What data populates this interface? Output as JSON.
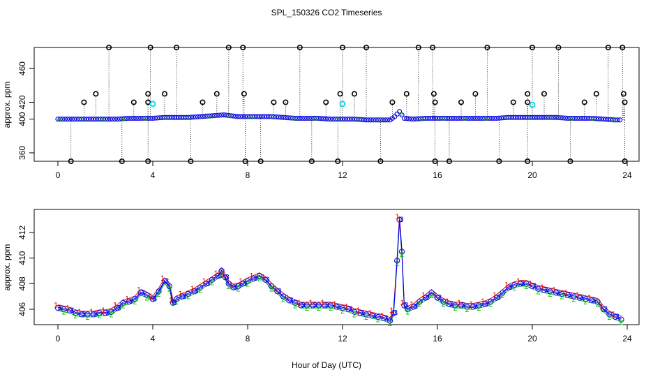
{
  "chart_data": [
    {
      "type": "scatter",
      "title": "SPL_150326  CO2 Timeseries",
      "ylabel": "approx. ppm",
      "xlim": [
        -1,
        24.5
      ],
      "ylim": [
        350,
        485
      ],
      "xticks": [
        0,
        4,
        8,
        12,
        16,
        20,
        24
      ],
      "yticks": [
        360,
        400,
        420,
        460
      ],
      "xtick_labels": [
        "0",
        "4",
        "8",
        "12",
        "16",
        "20",
        "24"
      ],
      "ytick_labels": [
        "360",
        "400",
        "420",
        "460"
      ],
      "baseline": {
        "hours": [
          0,
          0.5,
          1,
          1.5,
          2,
          2.5,
          3,
          3.5,
          4,
          4.5,
          5,
          5.5,
          6,
          6.5,
          7,
          7.3,
          7.6,
          8,
          8.5,
          9,
          9.5,
          10,
          10.5,
          11,
          11.5,
          12,
          12.5,
          13,
          13.5,
          14,
          14.2,
          14.4,
          14.6,
          15,
          15.5,
          16,
          16.5,
          17,
          17.5,
          18,
          18.5,
          19,
          19.5,
          20,
          20.5,
          21,
          21.5,
          22,
          22.5,
          23,
          23.5,
          23.8
        ],
        "values": [
          400,
          400,
          400,
          400,
          400,
          400,
          401,
          401,
          401,
          402,
          402,
          402,
          403,
          404,
          405,
          404,
          403,
          403,
          403,
          403,
          402,
          401,
          401,
          401,
          400,
          400,
          400,
          399,
          399,
          399,
          403,
          409,
          401,
          400,
          401,
          401,
          401,
          401,
          401,
          401,
          401,
          402,
          402,
          402,
          402,
          402,
          401,
          401,
          401,
          400,
          399,
          399
        ]
      },
      "spike_hours": [
        2.15,
        3.9,
        5.0,
        7.2,
        7.8,
        10.2,
        12.0,
        13.0,
        15.2,
        15.8,
        18.1,
        20.0,
        21.1,
        23.2,
        23.8
      ],
      "spike_value": 485,
      "spike2_hours": [
        1.6,
        3.8,
        4.5,
        6.7,
        7.85,
        11.9,
        12.5,
        14.7,
        15.85,
        17.6,
        19.8,
        20.5,
        22.7,
        23.85
      ],
      "spike2_value": 430,
      "spike3_hours": [
        1.1,
        3.2,
        3.8,
        6.1,
        9.1,
        9.6,
        11.3,
        14.1,
        15.9,
        17.0,
        19.2,
        19.8,
        22.2,
        23.9
      ],
      "spike3_value": 420,
      "dip_hours": [
        0.55,
        2.7,
        3.8,
        5.6,
        7.9,
        8.55,
        10.7,
        11.8,
        13.6,
        15.9,
        16.5,
        18.6,
        19.8,
        21.6,
        23.9
      ],
      "dip_value": 350,
      "cyan_points": [
        {
          "hour": 4.0,
          "value": 418
        },
        {
          "hour": 12.0,
          "value": 418
        },
        {
          "hour": 20.0,
          "value": 417
        }
      ]
    },
    {
      "type": "scatter",
      "xlabel": "Hour of Day (UTC)",
      "ylabel": "approx. ppm",
      "xlim": [
        -1,
        24.5
      ],
      "ylim": [
        404.8,
        413.8
      ],
      "xticks": [
        0,
        4,
        8,
        12,
        16,
        20,
        24
      ],
      "yticks": [
        406,
        408,
        410,
        412
      ],
      "xtick_labels": [
        "0",
        "4",
        "8",
        "12",
        "16",
        "20",
        "24"
      ],
      "ytick_labels": [
        "406",
        "408",
        "410",
        "412"
      ],
      "series_symbols": [
        "1",
        "2",
        "3",
        "4"
      ],
      "series_colors": [
        "#e00000",
        "#00c000",
        "#0000e0",
        "#0000ff"
      ],
      "hours": [
        0,
        0.25,
        0.5,
        0.75,
        1,
        1.25,
        1.5,
        1.75,
        2,
        2.25,
        2.5,
        2.75,
        3,
        3.25,
        3.5,
        3.75,
        4,
        4.25,
        4.5,
        4.7,
        4.85,
        5,
        5.25,
        5.5,
        5.75,
        6,
        6.25,
        6.5,
        6.75,
        6.9,
        7.05,
        7.2,
        7.4,
        7.6,
        7.8,
        8,
        8.25,
        8.5,
        8.75,
        9,
        9.25,
        9.5,
        9.75,
        10,
        10.25,
        10.5,
        10.75,
        11,
        11.25,
        11.5,
        11.75,
        12,
        12.25,
        12.5,
        12.75,
        13,
        13.25,
        13.5,
        13.75,
        14,
        14.15,
        14.3,
        14.4,
        14.5,
        14.6,
        14.75,
        15,
        15.25,
        15.5,
        15.75,
        16,
        16.25,
        16.5,
        16.75,
        17,
        17.25,
        17.5,
        17.75,
        18,
        18.25,
        18.5,
        18.75,
        19,
        19.25,
        19.5,
        19.75,
        20,
        20.25,
        20.5,
        20.75,
        21,
        21.25,
        21.5,
        21.75,
        22,
        22.25,
        22.5,
        22.75,
        23,
        23.25,
        23.5,
        23.75
      ],
      "values": [
        406.1,
        406.0,
        405.9,
        405.7,
        405.6,
        405.6,
        405.6,
        405.7,
        405.7,
        405.8,
        406.1,
        406.5,
        406.6,
        406.8,
        407.3,
        407.1,
        406.8,
        407.4,
        408.2,
        407.8,
        406.5,
        406.8,
        407.0,
        407.2,
        407.4,
        407.7,
        408.0,
        408.3,
        408.6,
        409.0,
        408.5,
        408.0,
        407.7,
        407.8,
        408.0,
        408.2,
        408.4,
        408.6,
        408.3,
        407.8,
        407.4,
        407.0,
        406.7,
        406.5,
        406.3,
        406.3,
        406.3,
        406.3,
        406.3,
        406.3,
        406.2,
        406.1,
        406.0,
        405.8,
        405.7,
        405.6,
        405.5,
        405.4,
        405.3,
        405.1,
        405.7,
        409.8,
        413.0,
        410.5,
        406.3,
        406.0,
        406.2,
        406.6,
        406.9,
        407.3,
        406.9,
        406.6,
        406.4,
        406.3,
        406.3,
        406.2,
        406.2,
        406.3,
        406.4,
        406.6,
        406.9,
        407.3,
        407.7,
        407.9,
        408.0,
        408.0,
        407.8,
        407.6,
        407.5,
        407.4,
        407.3,
        407.2,
        407.1,
        407.0,
        406.9,
        406.8,
        406.7,
        406.6,
        406.0,
        405.6,
        405.4,
        405.2
      ]
    }
  ]
}
